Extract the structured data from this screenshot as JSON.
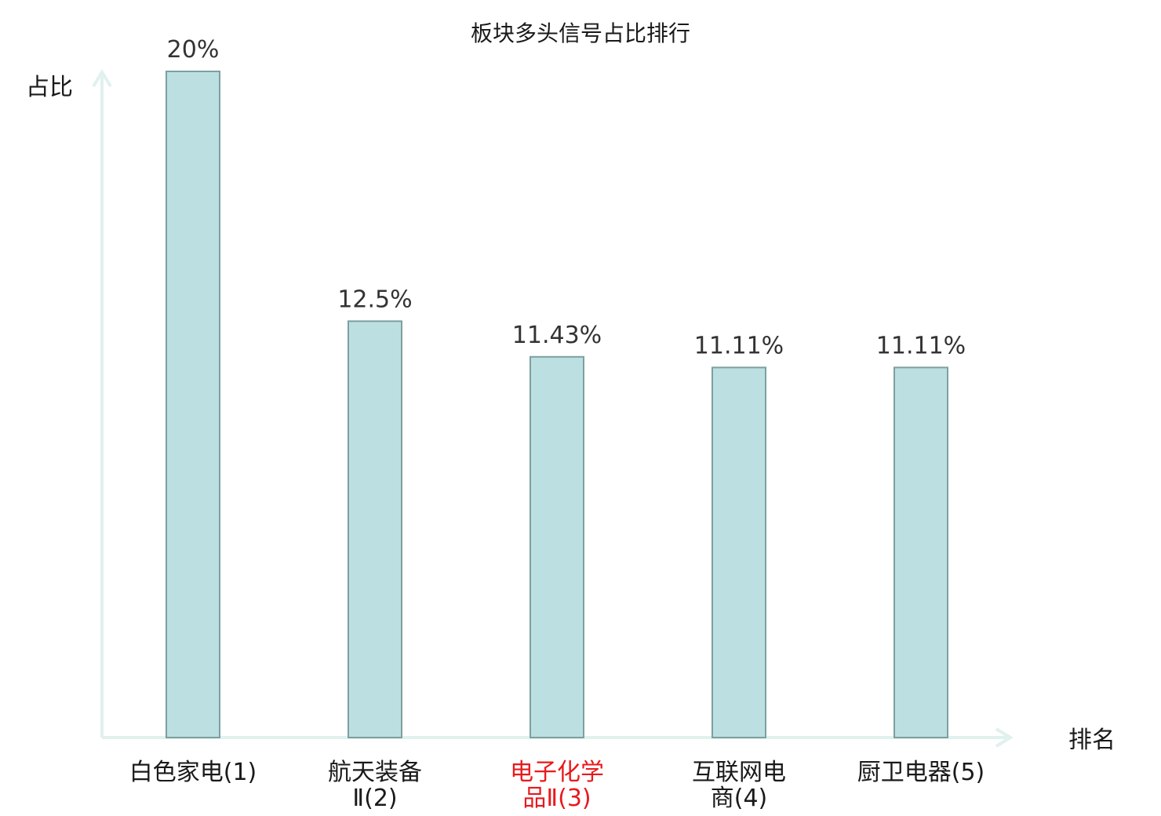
{
  "chart_data": {
    "type": "bar",
    "title": "板块多头信号占比排行",
    "xlabel": "排名",
    "ylabel": "占比",
    "categories": [
      [
        "白色家电(1)"
      ],
      [
        "航天装备",
        "Ⅱ(2)"
      ],
      [
        "电子化学",
        "品Ⅱ(3)"
      ],
      [
        "互联网电",
        "商(4)"
      ],
      [
        "厨卫电器(5)"
      ]
    ],
    "values": [
      20,
      12.5,
      11.43,
      11.11,
      11.11
    ],
    "value_labels": [
      "20%",
      "12.5%",
      "11.43%",
      "11.11%",
      "11.11%"
    ],
    "highlight_index": 2,
    "ylim": [
      0,
      20
    ],
    "grid": false,
    "colors": {
      "bar_fill": "#bce0e1",
      "bar_stroke": "#7e9fa0",
      "axis": "#e0f1ee",
      "highlight_label": "#e8191d",
      "label": "#1a1a1a"
    }
  }
}
